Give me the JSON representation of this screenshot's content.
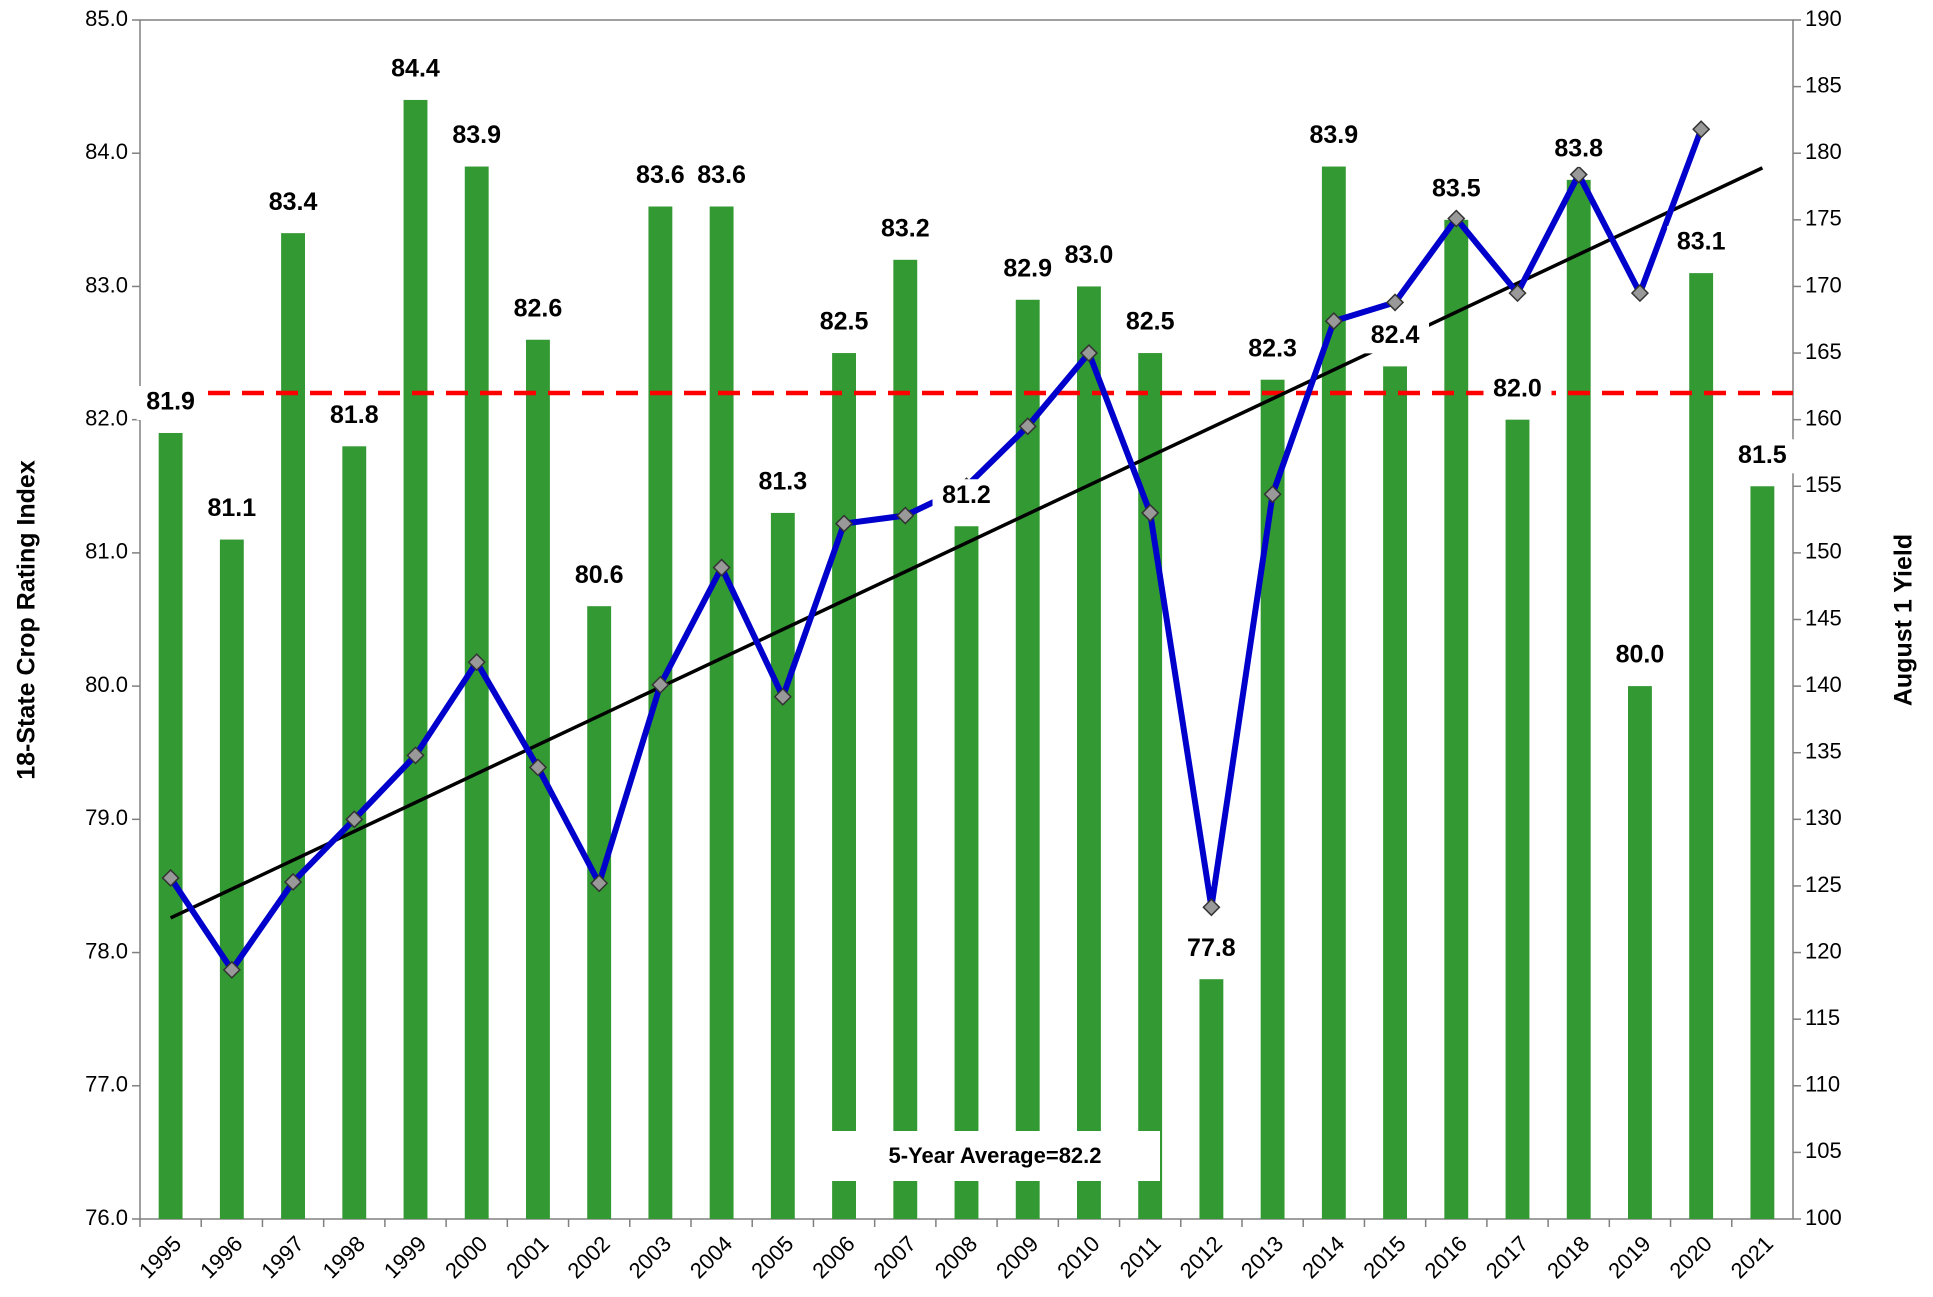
{
  "chart_data": {
    "type": "bar",
    "categories": [
      "1995",
      "1996",
      "1997",
      "1998",
      "1999",
      "2000",
      "2001",
      "2002",
      "2003",
      "2004",
      "2005",
      "2006",
      "2007",
      "2008",
      "2009",
      "2010",
      "2011",
      "2012",
      "2013",
      "2014",
      "2015",
      "2016",
      "2017",
      "2018",
      "2019",
      "2020",
      "2021"
    ],
    "series": [
      {
        "type": "bar",
        "color": "#339933",
        "values": [
          81.9,
          81.1,
          83.4,
          81.8,
          84.4,
          83.9,
          82.6,
          80.6,
          83.6,
          83.6,
          81.3,
          82.5,
          83.2,
          81.2,
          82.9,
          83.0,
          82.5,
          77.8,
          82.3,
          83.9,
          82.4,
          83.5,
          82.0,
          83.8,
          80.0,
          83.1,
          81.5
        ],
        "value_labels": [
          "81.9",
          "81.1",
          "83.4",
          "81.8",
          "84.4",
          "83.9",
          "82.6",
          "80.6",
          "83.6",
          "83.6",
          "81.3",
          "82.5",
          "83.2",
          "81.2",
          "82.9",
          "83.0",
          "82.5",
          "77.8",
          "82.3",
          "83.9",
          "82.4",
          "83.5",
          "82.0",
          "83.8",
          "80.0",
          "83.1",
          "81.5"
        ]
      },
      {
        "type": "line",
        "axis": "y2",
        "color": "#0000cc",
        "marker_color": "#999999",
        "values": [
          125.6,
          118.7,
          125.3,
          130.0,
          134.8,
          141.8,
          133.9,
          125.2,
          140.1,
          148.9,
          139.2,
          152.2,
          152.8,
          155.0,
          159.5,
          165.0,
          153.0,
          123.4,
          154.4,
          167.4,
          168.8,
          175.1,
          169.5,
          178.4,
          169.5,
          181.8,
          null
        ]
      }
    ],
    "trend_line": {
      "axis": "y2",
      "color": "#000000",
      "values": [
        122.6,
        178.9
      ]
    },
    "reference_line": {
      "value": 82.2,
      "color": "#ff0000",
      "label": "5-Year Average=82.2"
    },
    "y_label": "18-State Crop Rating Index",
    "y2_label": "August 1 Yield",
    "ylim": [
      76,
      85
    ],
    "yticks": [
      {
        "value": 76,
        "label": "76.0"
      },
      {
        "value": 77,
        "label": "77.0"
      },
      {
        "value": 78,
        "label": "78.0"
      },
      {
        "value": 79,
        "label": "79.0"
      },
      {
        "value": 80,
        "label": "80.0"
      },
      {
        "value": 81,
        "label": "81.0"
      },
      {
        "value": 82,
        "label": "82.0"
      },
      {
        "value": 83,
        "label": "83.0"
      },
      {
        "value": 84,
        "label": "84.0"
      },
      {
        "value": 85,
        "label": "85.0"
      }
    ],
    "y2lim": [
      100,
      190
    ],
    "y2ticks": [
      100,
      105,
      110,
      115,
      120,
      125,
      130,
      135,
      140,
      145,
      150,
      155,
      160,
      165,
      170,
      175,
      180,
      185,
      190
    ]
  }
}
